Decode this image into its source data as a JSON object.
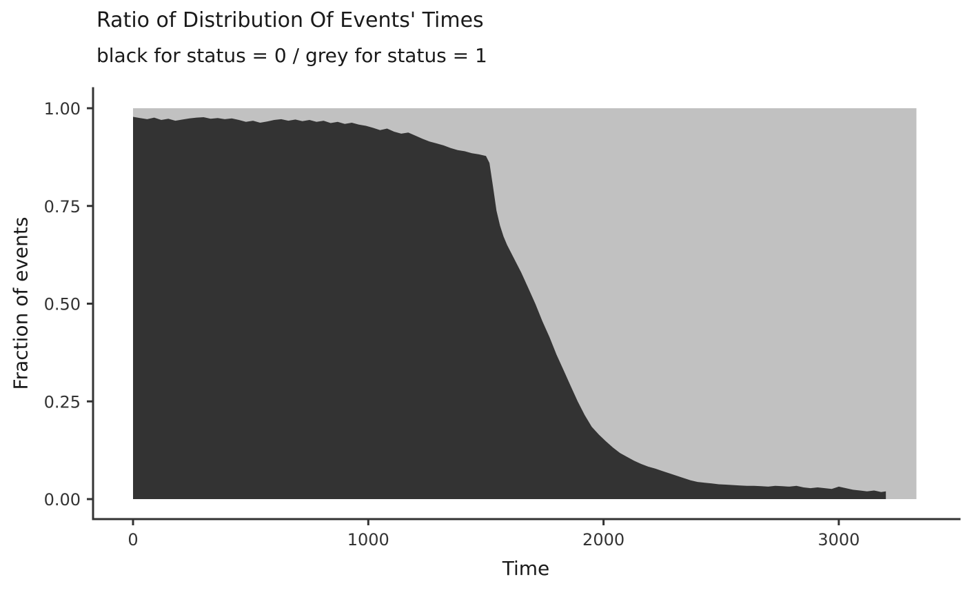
{
  "chart_data": {
    "type": "area",
    "title": "Ratio of Distribution Of Events' Times",
    "subtitle": "black for status = 0 / grey for status = 1",
    "xlabel": "Time",
    "ylabel": "Fraction of events",
    "xlim": [
      0,
      3330
    ],
    "ylim": [
      0,
      1
    ],
    "grid": false,
    "legend_position": "none",
    "stacked_to": 1,
    "x_ticks": {
      "values": [
        0,
        1000,
        2000,
        3000
      ],
      "labels": [
        "0",
        "1000",
        "2000",
        "3000"
      ]
    },
    "y_ticks": {
      "values": [
        0,
        0.25,
        0.5,
        0.75,
        1.0
      ],
      "labels": [
        "0.00",
        "0.25",
        "0.50",
        "0.75",
        "1.00"
      ]
    },
    "series": [
      {
        "name": "status = 0",
        "color": "#333333",
        "x": [
          0,
          30,
          60,
          90,
          120,
          150,
          180,
          210,
          240,
          270,
          300,
          330,
          360,
          390,
          420,
          450,
          480,
          510,
          540,
          570,
          600,
          630,
          660,
          690,
          720,
          750,
          780,
          810,
          840,
          870,
          900,
          930,
          960,
          990,
          1020,
          1050,
          1080,
          1110,
          1140,
          1170,
          1200,
          1230,
          1260,
          1290,
          1320,
          1350,
          1380,
          1410,
          1440,
          1470,
          1500,
          1515,
          1530,
          1545,
          1560,
          1575,
          1590,
          1620,
          1650,
          1680,
          1710,
          1740,
          1770,
          1800,
          1830,
          1860,
          1890,
          1920,
          1950,
          1980,
          2010,
          2040,
          2070,
          2100,
          2130,
          2160,
          2190,
          2220,
          2250,
          2280,
          2310,
          2340,
          2370,
          2400,
          2430,
          2460,
          2490,
          2520,
          2550,
          2580,
          2610,
          2640,
          2670,
          2700,
          2730,
          2760,
          2790,
          2820,
          2850,
          2880,
          2910,
          2940,
          2970,
          3000,
          3030,
          3060,
          3090,
          3120,
          3150,
          3180,
          3200
        ],
        "y": [
          0.978,
          0.975,
          0.972,
          0.976,
          0.97,
          0.973,
          0.968,
          0.971,
          0.974,
          0.976,
          0.977,
          0.973,
          0.975,
          0.972,
          0.974,
          0.97,
          0.965,
          0.968,
          0.963,
          0.966,
          0.97,
          0.972,
          0.968,
          0.971,
          0.967,
          0.97,
          0.965,
          0.968,
          0.962,
          0.965,
          0.96,
          0.963,
          0.958,
          0.955,
          0.95,
          0.944,
          0.948,
          0.94,
          0.935,
          0.938,
          0.93,
          0.922,
          0.915,
          0.91,
          0.905,
          0.898,
          0.893,
          0.89,
          0.885,
          0.882,
          0.878,
          0.86,
          0.8,
          0.738,
          0.7,
          0.672,
          0.65,
          0.615,
          0.58,
          0.54,
          0.5,
          0.455,
          0.415,
          0.37,
          0.33,
          0.29,
          0.25,
          0.215,
          0.185,
          0.165,
          0.148,
          0.132,
          0.118,
          0.108,
          0.098,
          0.09,
          0.083,
          0.078,
          0.072,
          0.066,
          0.06,
          0.054,
          0.048,
          0.044,
          0.042,
          0.04,
          0.038,
          0.037,
          0.036,
          0.035,
          0.034,
          0.034,
          0.033,
          0.032,
          0.034,
          0.033,
          0.032,
          0.034,
          0.03,
          0.028,
          0.03,
          0.028,
          0.026,
          0.032,
          0.028,
          0.024,
          0.022,
          0.02,
          0.022,
          0.018,
          0.02
        ]
      },
      {
        "name": "status = 1",
        "color": "#c1c1c1",
        "definition": "complement of status = 0 fraction (stacked to 1.0), extending over x = 0 to 3330"
      }
    ]
  }
}
